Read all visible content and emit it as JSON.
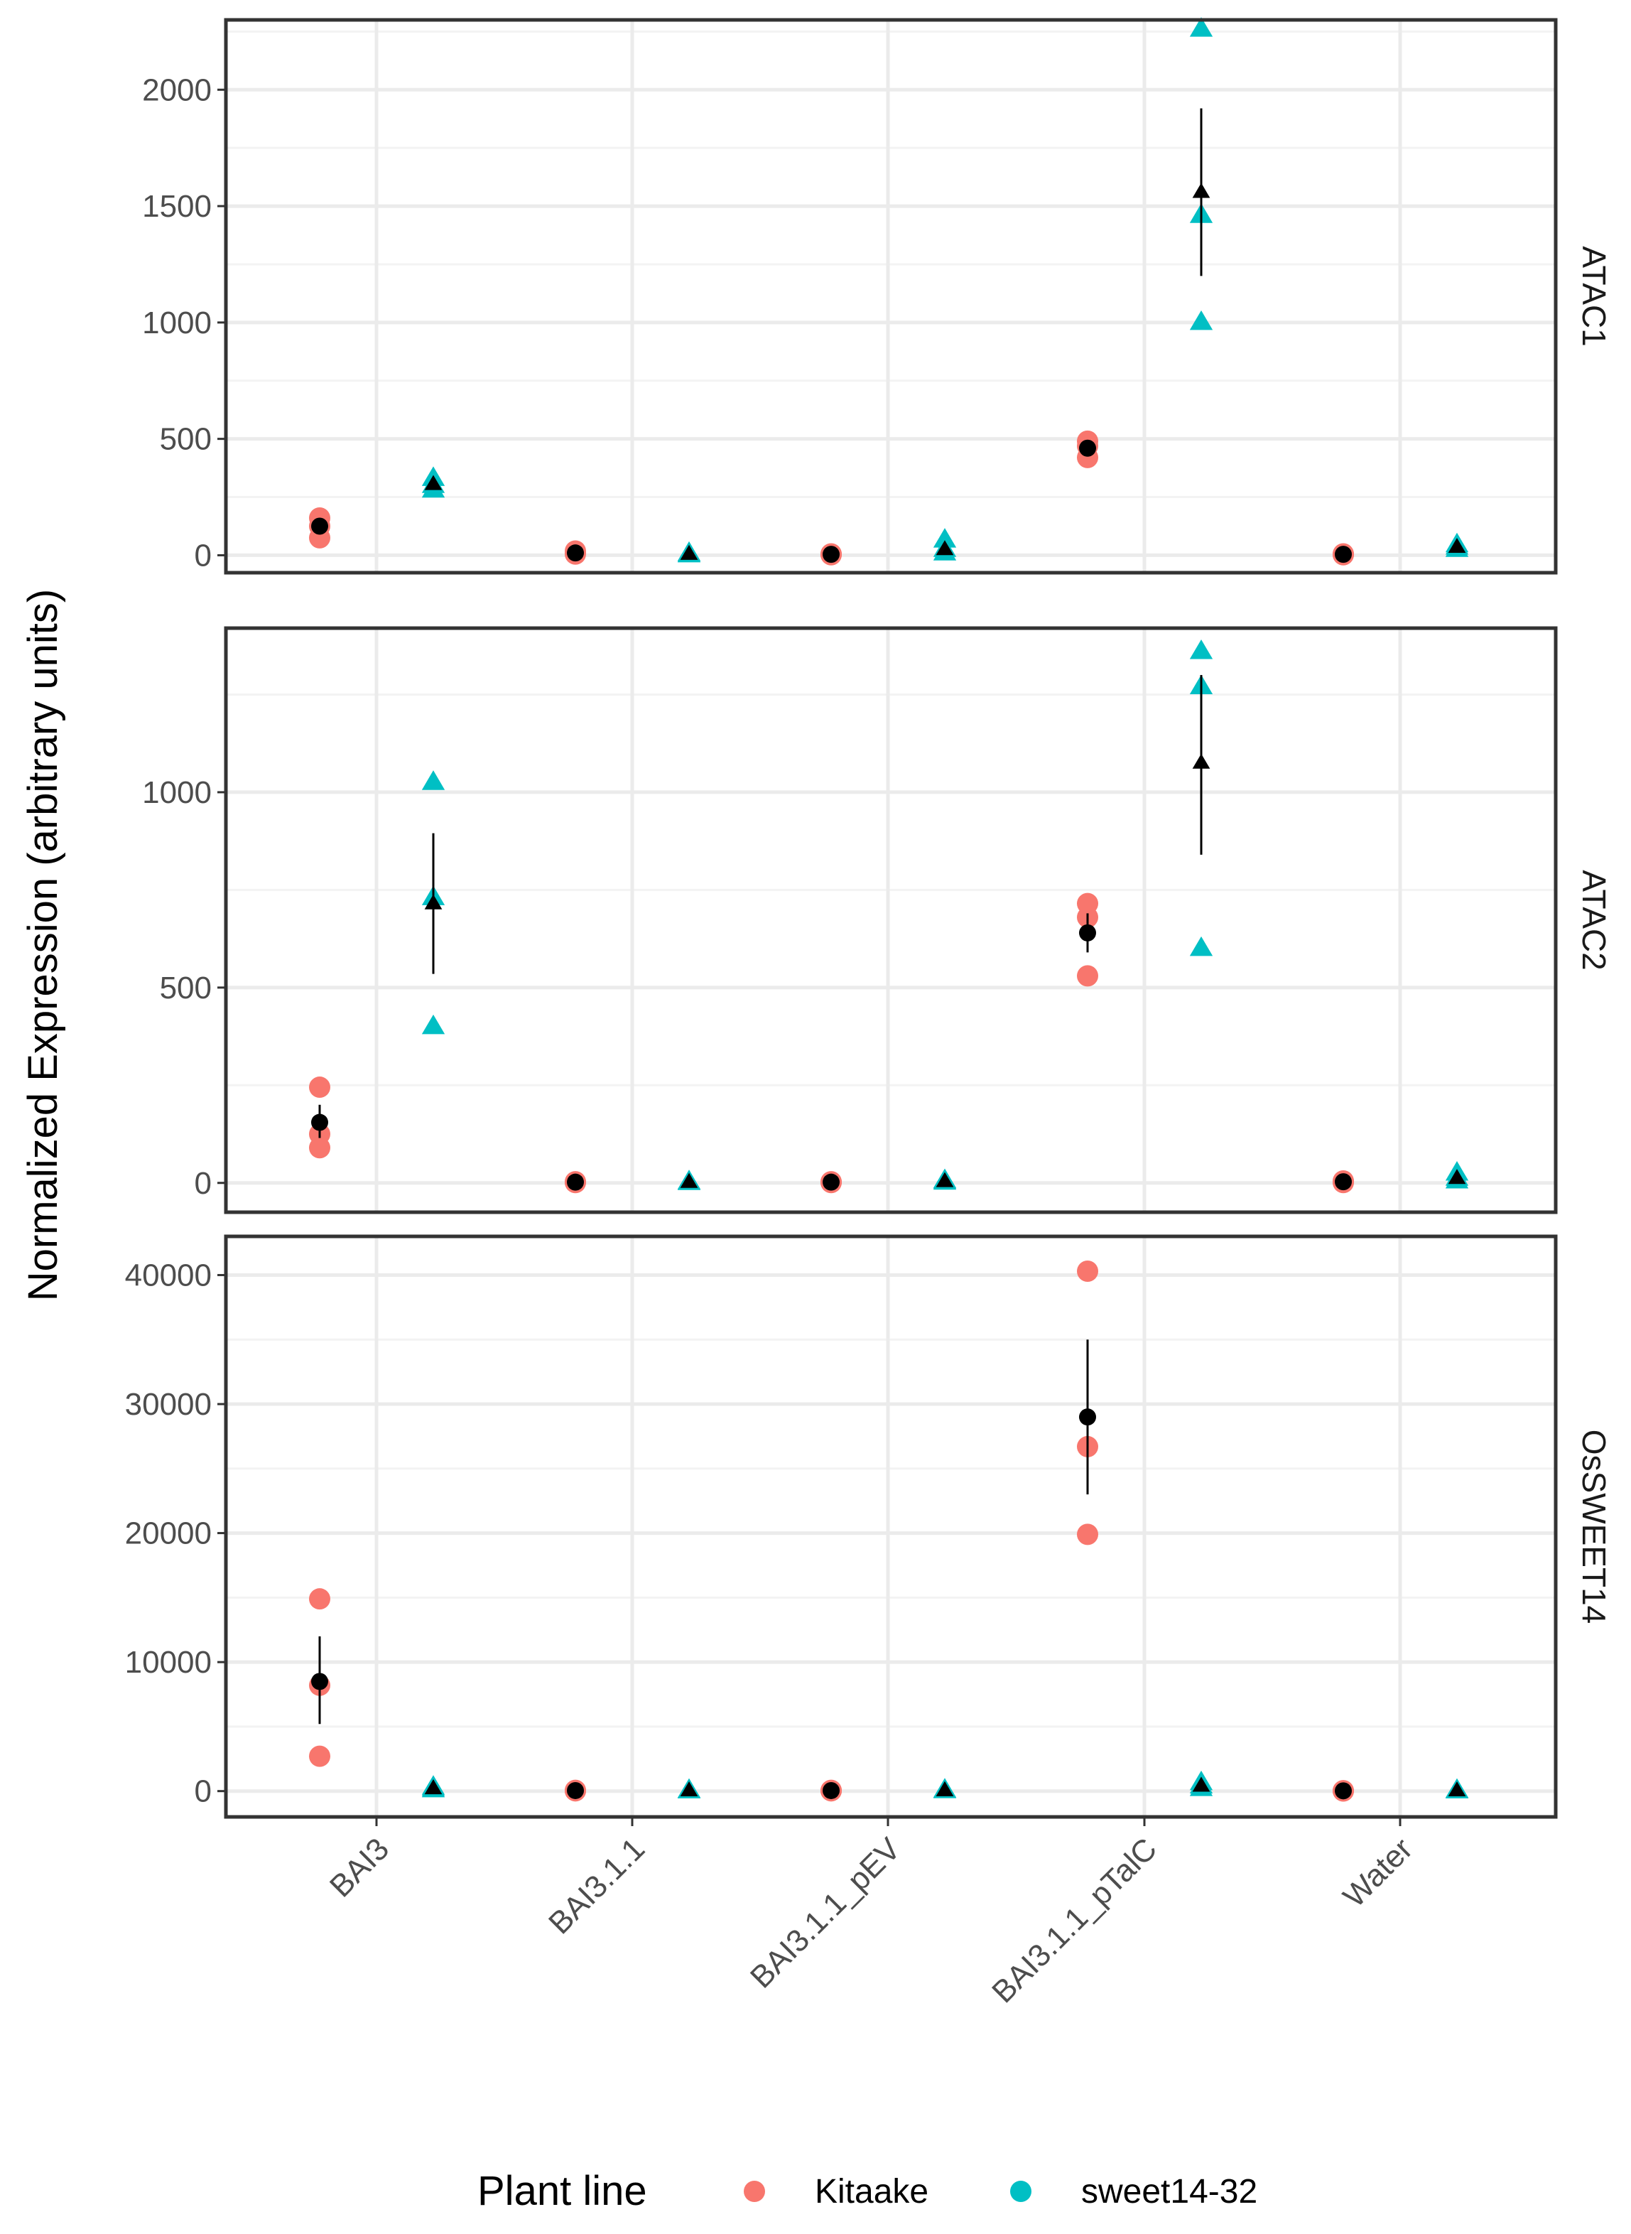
{
  "chart_data": {
    "type": "scatter",
    "ylabel": "Normalized Expression (arbitrary units)",
    "xlabel": "",
    "categories": [
      "BAI3",
      "BAI3.1.1",
      "BAI3.1.1_pEV",
      "BAI3.1.1_pTalC",
      "Water"
    ],
    "legend": {
      "title": "Plant line",
      "position": "bottom",
      "entries": [
        {
          "name": "Kitaake",
          "color": "#F8766D",
          "shape": "circle"
        },
        {
          "name": "sweet14-32",
          "color": "#00BFC4",
          "shape": "triangle"
        }
      ]
    },
    "colors": {
      "kitaake": "#F8766D",
      "sweet": "#00BFC4",
      "mean": "#000000",
      "grid_major": "#EBEBEB",
      "grid_minor": "#F3F3F3",
      "panel_border": "#333333"
    },
    "facets": [
      {
        "label": "ATAC1",
        "ylim": [
          -75,
          2300
        ],
        "yticks": [
          0,
          500,
          1000,
          1500,
          2000
        ],
        "ytick_labels": [
          "0",
          "500",
          "1000",
          "1500",
          "2000"
        ],
        "series": [
          {
            "name": "Kitaake",
            "points": [
              [
                75,
                125,
                160
              ],
              [
                5,
                12,
                18
              ],
              [
                2,
                4,
                6
              ],
              [
                420,
                470,
                490
              ],
              [
                2,
                4,
                6
              ]
            ],
            "mean": [
              125,
              10,
              4,
              460,
              4
            ],
            "error": [
              null,
              null,
              null,
              null,
              null
            ]
          },
          {
            "name": "sweet14-32",
            "points": [
              [
                280,
                300,
                330
              ],
              [
                2,
                5,
                8
              ],
              [
                10,
                25,
                65
              ],
              [
                1000,
                1460,
                2260
              ],
              [
                25,
                35,
                45
              ]
            ],
            "mean": [
              305,
              5,
              25,
              1560,
              35
            ],
            "error": [
              null,
              null,
              null,
              [
                1200,
                1920
              ],
              null
            ]
          }
        ]
      },
      {
        "label": "ATAC2",
        "ylim": [
          -75,
          1420
        ],
        "yticks": [
          0,
          500,
          1000
        ],
        "ytick_labels": [
          "0",
          "500",
          "1000"
        ],
        "series": [
          {
            "name": "Kitaake",
            "points": [
              [
                90,
                125,
                245
              ],
              [
                1,
                2,
                3
              ],
              [
                1,
                2,
                3
              ],
              [
                530,
                680,
                715
              ],
              [
                1,
                3,
                5
              ]
            ],
            "mean": [
              155,
              2,
              2,
              640,
              3
            ],
            "error": [
              [
                115,
                200
              ],
              null,
              null,
              [
                590,
                690
              ],
              null
            ]
          },
          {
            "name": "sweet14-32",
            "points": [
              [
                400,
                730,
                1025
              ],
              [
                1,
                2,
                3
              ],
              [
                2,
                4,
                6
              ],
              [
                600,
                1270,
                1360
              ],
              [
                5,
                12,
                25
              ]
            ],
            "mean": [
              715,
              2,
              4,
              1075,
              12
            ],
            "error": [
              [
                535,
                895
              ],
              null,
              null,
              [
                840,
                1300
              ],
              null
            ]
          }
        ]
      },
      {
        "label": "OsSWEET14",
        "ylim": [
          -2000,
          43000
        ],
        "yticks": [
          0,
          10000,
          20000,
          30000,
          40000
        ],
        "ytick_labels": [
          "0",
          "10000",
          "20000",
          "30000",
          "40000"
        ],
        "series": [
          {
            "name": "Kitaake",
            "points": [
              [
                2700,
                8200,
                14900
              ],
              [
                20,
                40,
                60
              ],
              [
                20,
                40,
                60
              ],
              [
                19900,
                26700,
                40300
              ],
              [
                10,
                20,
                30
              ]
            ],
            "mean": [
              8500,
              40,
              40,
              29000,
              20
            ],
            "error": [
              [
                5200,
                12000
              ],
              null,
              null,
              [
                23000,
                35000
              ],
              null
            ]
          },
          {
            "name": "sweet14-32",
            "points": [
              [
                100,
                200,
                300
              ],
              [
                20,
                40,
                60
              ],
              [
                30,
                50,
                80
              ],
              [
                200,
                400,
                650
              ],
              [
                20,
                40,
                60
              ]
            ],
            "mean": [
              200,
              40,
              50,
              400,
              40
            ],
            "error": [
              null,
              null,
              null,
              null,
              null
            ]
          }
        ]
      }
    ]
  }
}
